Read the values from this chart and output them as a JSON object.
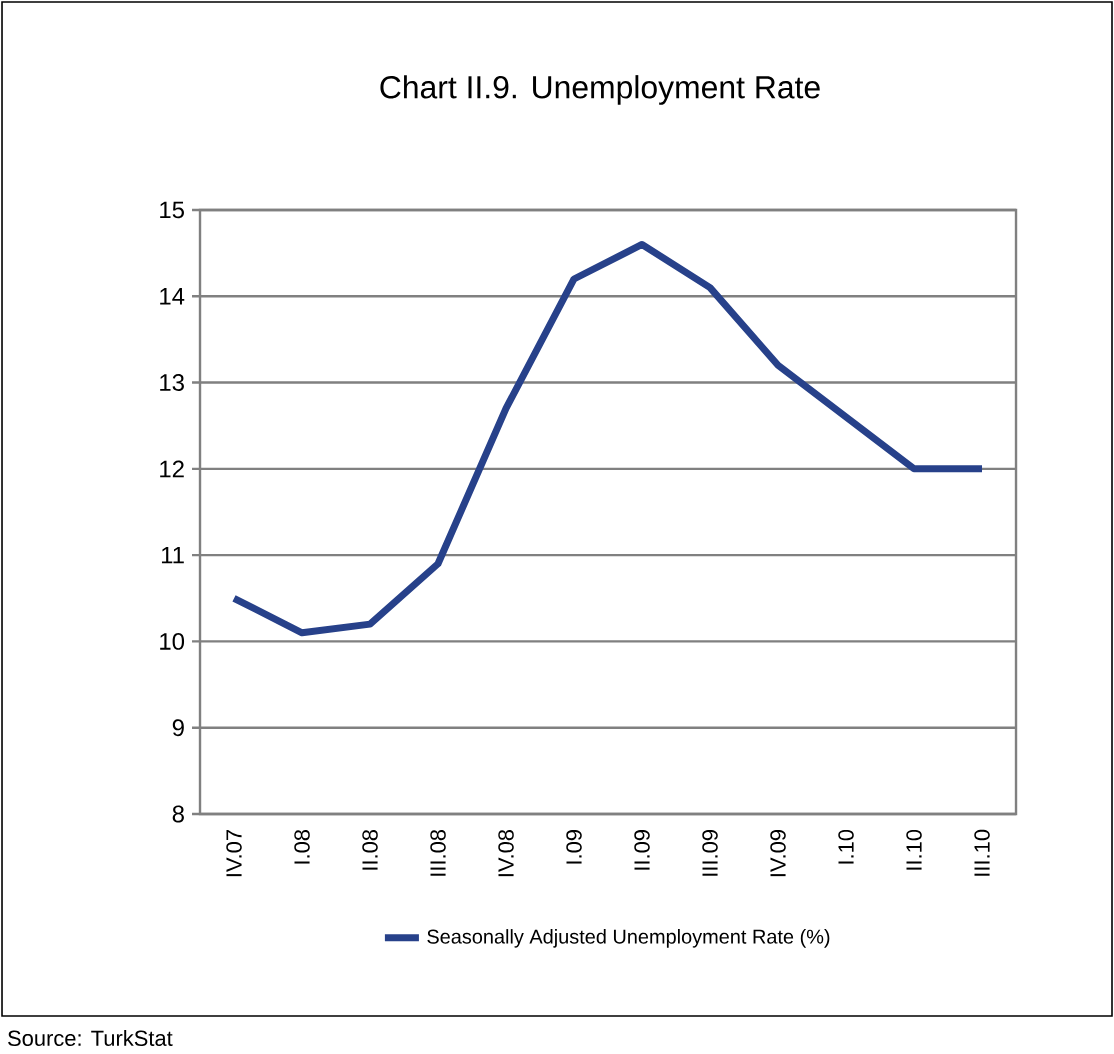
{
  "chart_data": {
    "type": "line",
    "title": "Chart II.9. Unemployment Rate",
    "categories": [
      "IV.07",
      "I.08",
      "II.08",
      "III.08",
      "IV.08",
      "I.09",
      "II.09",
      "III.09",
      "IV.09",
      "I.10",
      "II.10",
      "III.10"
    ],
    "series": [
      {
        "name": "Seasonally Adjusted Unemployment Rate (%)",
        "color": "#27418a",
        "values": [
          10.5,
          10.1,
          10.2,
          10.9,
          12.7,
          14.2,
          14.6,
          14.1,
          13.2,
          12.6,
          12.0,
          12.0
        ]
      }
    ],
    "ylim": [
      8,
      15
    ],
    "yticks": [
      8,
      9,
      10,
      11,
      12,
      13,
      14,
      15
    ],
    "grid": "y",
    "legend": "bottom",
    "marker": "none",
    "line_style": "solid",
    "annotations": [
      "Source: TurkStat"
    ]
  }
}
